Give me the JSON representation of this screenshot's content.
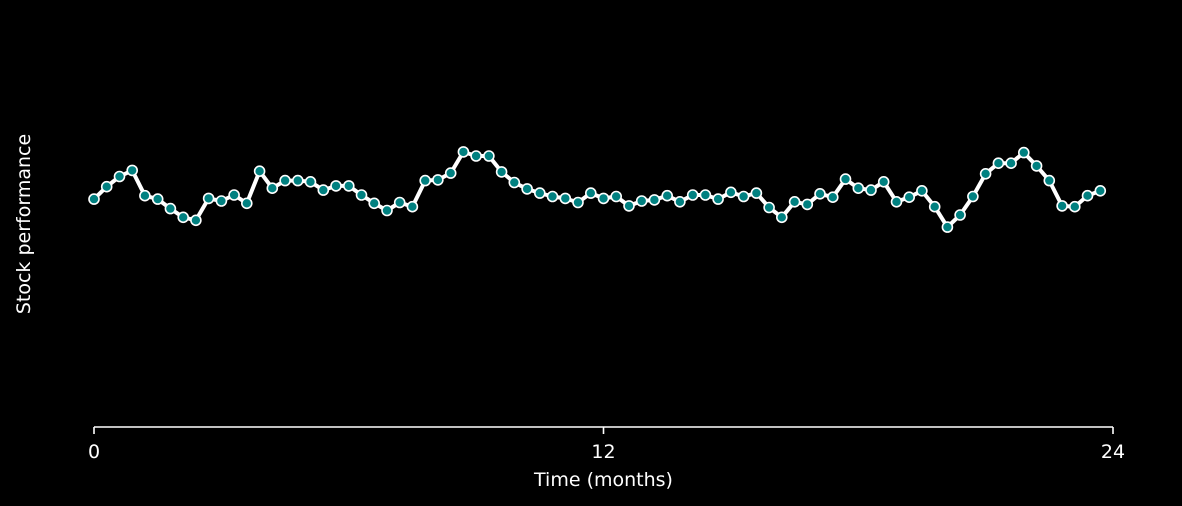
{
  "chart_data": {
    "type": "line",
    "title": "",
    "xlabel": "Time (months)",
    "ylabel": "Stock performance",
    "xlim": [
      0,
      24
    ],
    "ylim": [
      0,
      100
    ],
    "x_ticks": [
      0,
      12,
      24
    ],
    "grid": false,
    "legend": "none",
    "colors": {
      "background": "#000000",
      "line": "#ffffff",
      "marker_fill": "#008080",
      "marker_edge": "#ffffff",
      "axis": "#ffffff",
      "text": "#ffffff"
    },
    "series": [
      {
        "values": [
          [
            0.0,
            57.9
          ],
          [
            0.3,
            61.2
          ],
          [
            0.6,
            63.9
          ],
          [
            0.9,
            65.5
          ],
          [
            1.2,
            58.8
          ],
          [
            1.5,
            57.9
          ],
          [
            1.8,
            55.4
          ],
          [
            2.1,
            53.1
          ],
          [
            2.4,
            52.3
          ],
          [
            2.7,
            58.1
          ],
          [
            3.0,
            57.4
          ],
          [
            3.3,
            59.0
          ],
          [
            3.6,
            56.8
          ],
          [
            3.9,
            65.3
          ],
          [
            4.2,
            60.8
          ],
          [
            4.5,
            62.8
          ],
          [
            4.8,
            62.8
          ],
          [
            5.1,
            62.5
          ],
          [
            5.4,
            60.3
          ],
          [
            5.7,
            61.4
          ],
          [
            6.0,
            61.4
          ],
          [
            6.3,
            59.0
          ],
          [
            6.6,
            56.8
          ],
          [
            6.9,
            54.9
          ],
          [
            7.2,
            57.0
          ],
          [
            7.5,
            55.9
          ],
          [
            7.8,
            62.8
          ],
          [
            8.1,
            63.0
          ],
          [
            8.4,
            64.8
          ],
          [
            8.7,
            70.4
          ],
          [
            9.0,
            69.3
          ],
          [
            9.3,
            69.3
          ],
          [
            9.6,
            65.1
          ],
          [
            9.9,
            62.3
          ],
          [
            10.2,
            60.6
          ],
          [
            10.5,
            59.5
          ],
          [
            10.8,
            58.6
          ],
          [
            11.1,
            58.1
          ],
          [
            11.4,
            57.0
          ],
          [
            11.7,
            59.5
          ],
          [
            12.0,
            58.1
          ],
          [
            12.3,
            58.6
          ],
          [
            12.6,
            56.1
          ],
          [
            12.9,
            57.4
          ],
          [
            13.2,
            57.7
          ],
          [
            13.5,
            58.8
          ],
          [
            13.8,
            57.2
          ],
          [
            14.1,
            59.0
          ],
          [
            14.4,
            59.0
          ],
          [
            14.7,
            57.9
          ],
          [
            15.0,
            59.7
          ],
          [
            15.3,
            58.6
          ],
          [
            15.6,
            59.5
          ],
          [
            15.9,
            55.7
          ],
          [
            16.2,
            53.1
          ],
          [
            16.5,
            57.2
          ],
          [
            16.8,
            56.5
          ],
          [
            17.1,
            59.3
          ],
          [
            17.4,
            58.4
          ],
          [
            17.7,
            63.2
          ],
          [
            18.0,
            60.8
          ],
          [
            18.3,
            60.3
          ],
          [
            18.6,
            62.5
          ],
          [
            18.9,
            57.2
          ],
          [
            19.2,
            58.4
          ],
          [
            19.5,
            60.1
          ],
          [
            19.8,
            55.9
          ],
          [
            20.1,
            50.5
          ],
          [
            20.4,
            53.7
          ],
          [
            20.7,
            58.6
          ],
          [
            21.0,
            64.6
          ],
          [
            21.3,
            67.4
          ],
          [
            21.6,
            67.4
          ],
          [
            21.9,
            70.2
          ],
          [
            22.2,
            66.7
          ],
          [
            22.5,
            62.8
          ],
          [
            22.8,
            56.1
          ],
          [
            23.1,
            55.9
          ],
          [
            23.4,
            58.8
          ],
          [
            23.7,
            60.1
          ]
        ]
      }
    ]
  }
}
